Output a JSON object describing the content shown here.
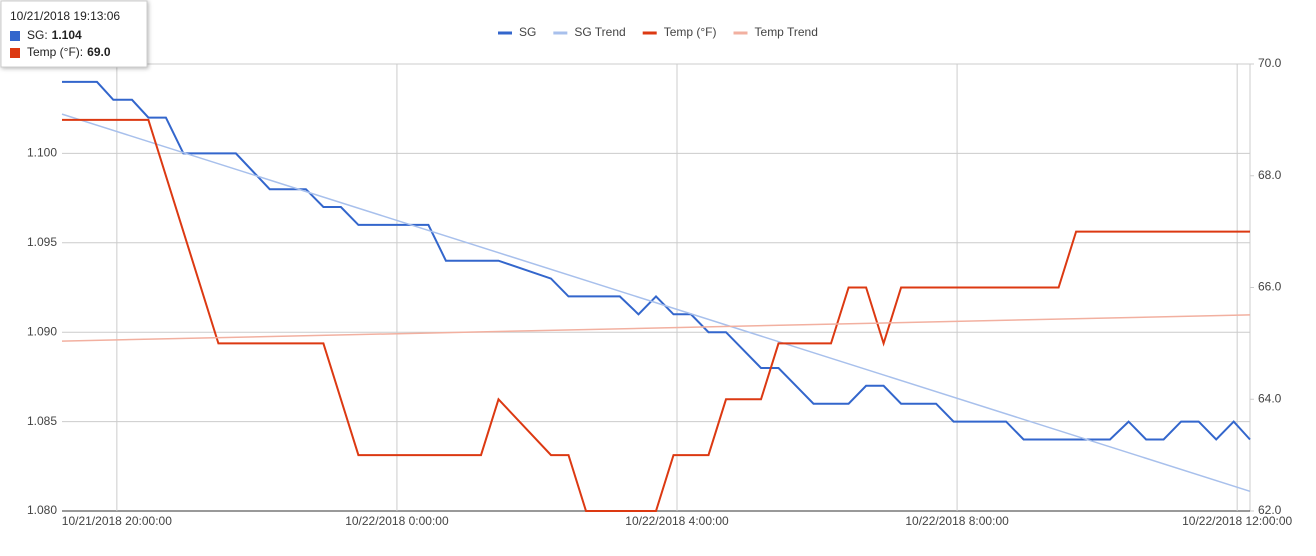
{
  "chart_data": {
    "type": "line",
    "tooltip": {
      "title": "10/21/2018 19:13:06",
      "items": [
        {
          "label": "SG:",
          "value": "1.104",
          "color": "#3366cc"
        },
        {
          "label": "Temp (°F):",
          "value": "69.0",
          "color": "#dc3912"
        }
      ]
    },
    "xlim": [
      "2018-10-21T19:13",
      "2018-10-22T12:11"
    ],
    "xticks": [
      {
        "value": "2018-10-21T20:00",
        "label": "10/21/2018 20:00:00"
      },
      {
        "value": "2018-10-22T00:00",
        "label": "10/22/2018 0:00:00"
      },
      {
        "value": "2018-10-22T04:00",
        "label": "10/22/2018 4:00:00"
      },
      {
        "value": "2018-10-22T08:00",
        "label": "10/22/2018 8:00:00"
      },
      {
        "value": "2018-10-22T12:00",
        "label": "10/22/2018 12:00:00"
      }
    ],
    "ylim": [
      1.08,
      1.105
    ],
    "yticks": [
      {
        "value": 1.08,
        "label": "1.080"
      },
      {
        "value": 1.085,
        "label": "1.085"
      },
      {
        "value": 1.09,
        "label": "1.090"
      },
      {
        "value": 1.095,
        "label": "1.095"
      },
      {
        "value": 1.1,
        "label": "1.100"
      }
    ],
    "y2lim": [
      62,
      70
    ],
    "y2ticks": [
      {
        "value": 62,
        "label": "62.0"
      },
      {
        "value": 64,
        "label": "64.0"
      },
      {
        "value": 66,
        "label": "66.0"
      },
      {
        "value": 68,
        "label": "68.0"
      },
      {
        "value": 70,
        "label": "70.0"
      }
    ],
    "grid": true,
    "series": [
      {
        "name": "SG",
        "color": "#3366cc",
        "x": [
          "2018-10-21T19:13",
          "2018-10-21T19:43",
          "2018-10-21T19:57",
          "2018-10-21T20:13",
          "2018-10-21T20:27",
          "2018-10-21T20:42",
          "2018-10-21T20:57",
          "2018-10-21T21:42",
          "2018-10-21T22:11",
          "2018-10-21T22:42",
          "2018-10-21T22:57",
          "2018-10-21T23:12",
          "2018-10-21T23:27",
          "2018-10-22T00:27",
          "2018-10-22T00:42",
          "2018-10-22T01:27",
          "2018-10-22T02:12",
          "2018-10-22T02:27",
          "2018-10-22T03:11",
          "2018-10-22T03:27",
          "2018-10-22T03:42",
          "2018-10-22T03:57",
          "2018-10-22T04:12",
          "2018-10-22T04:27",
          "2018-10-22T04:42",
          "2018-10-22T05:12",
          "2018-10-22T05:27",
          "2018-10-22T05:57",
          "2018-10-22T06:27",
          "2018-10-22T06:42",
          "2018-10-22T06:57",
          "2018-10-22T07:12",
          "2018-10-22T07:42",
          "2018-10-22T07:57",
          "2018-10-22T08:42",
          "2018-10-22T08:57",
          "2018-10-22T10:11",
          "2018-10-22T10:27",
          "2018-10-22T10:42",
          "2018-10-22T10:57",
          "2018-10-22T11:12",
          "2018-10-22T11:27",
          "2018-10-22T11:42",
          "2018-10-22T11:57",
          "2018-10-22T12:11"
        ],
        "values": [
          1.104,
          1.104,
          1.103,
          1.103,
          1.102,
          1.102,
          1.1,
          1.1,
          1.098,
          1.098,
          1.097,
          1.097,
          1.096,
          1.096,
          1.094,
          1.094,
          1.093,
          1.092,
          1.092,
          1.091,
          1.092,
          1.091,
          1.091,
          1.09,
          1.09,
          1.088,
          1.088,
          1.086,
          1.086,
          1.087,
          1.087,
          1.086,
          1.086,
          1.085,
          1.085,
          1.084,
          1.084,
          1.085,
          1.084,
          1.084,
          1.085,
          1.085,
          1.084,
          1.085,
          1.084
        ]
      },
      {
        "name": "SG Trend",
        "color": "#a8c0ec",
        "x": [
          "2018-10-21T19:13",
          "2018-10-22T12:11"
        ],
        "values": [
          1.1022,
          1.0811
        ]
      },
      {
        "name": "Temp (°F)",
        "color": "#dc3912",
        "axis": "y2",
        "x": [
          "2018-10-21T19:13",
          "2018-10-21T20:27",
          "2018-10-21T21:27",
          "2018-10-21T22:57",
          "2018-10-21T23:27",
          "2018-10-22T01:12",
          "2018-10-22T01:27",
          "2018-10-22T02:12",
          "2018-10-22T02:27",
          "2018-10-22T02:42",
          "2018-10-22T03:42",
          "2018-10-22T03:57",
          "2018-10-22T04:27",
          "2018-10-22T04:42",
          "2018-10-22T05:12",
          "2018-10-22T05:27",
          "2018-10-22T06:12",
          "2018-10-22T06:27",
          "2018-10-22T06:42",
          "2018-10-22T06:57",
          "2018-10-22T07:12",
          "2018-10-22T09:27",
          "2018-10-22T09:42",
          "2018-10-22T12:11"
        ],
        "values": [
          69,
          69,
          65,
          65,
          63,
          63,
          64,
          63,
          63,
          62,
          62,
          63,
          63,
          64,
          64,
          65,
          65,
          66,
          66,
          65,
          66,
          66,
          67,
          67
        ]
      },
      {
        "name": "Temp Trend",
        "color": "#f2b0a0",
        "axis": "y2",
        "x": [
          "2018-10-21T19:13",
          "2018-10-22T12:11"
        ],
        "values": [
          65.04,
          65.51
        ]
      }
    ]
  }
}
